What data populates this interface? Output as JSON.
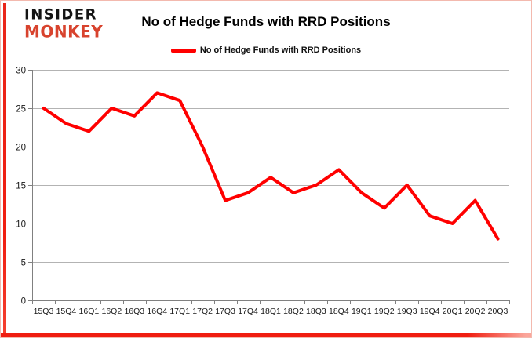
{
  "logo": {
    "line1": "INSIDER",
    "line2": "MONKEY",
    "brand_red": "#d8432e"
  },
  "title": "No of Hedge Funds with RRD Positions",
  "legend": {
    "label": "No of Hedge Funds with RRD Positions",
    "swatch_color": "#ff0000"
  },
  "frame": {
    "accent_color": "#f01d10",
    "border_color": "#f3b9ae"
  },
  "chart_data": {
    "type": "line",
    "title": "No of Hedge Funds with RRD Positions",
    "series": [
      {
        "name": "No of Hedge Funds with RRD Positions",
        "values": [
          25,
          23,
          22,
          25,
          24,
          27,
          26,
          20,
          13,
          14,
          16,
          14,
          15,
          17,
          14,
          12,
          15,
          11,
          10,
          13,
          8
        ]
      }
    ],
    "categories": [
      "15Q3",
      "15Q4",
      "16Q1",
      "16Q2",
      "16Q3",
      "16Q4",
      "17Q1",
      "17Q2",
      "17Q3",
      "17Q4",
      "18Q1",
      "18Q2",
      "18Q3",
      "18Q4",
      "19Q1",
      "19Q2",
      "19Q3",
      "19Q4",
      "20Q1",
      "20Q2",
      "20Q3"
    ],
    "xlabel": "",
    "ylabel": "",
    "ylim": [
      0,
      30
    ],
    "yticks": [
      0,
      5,
      10,
      15,
      20,
      25,
      30
    ],
    "line_color": "#ff0000",
    "gridline_color": "#b3b3b3",
    "axis_color": "#808080",
    "tick_label_color": "#1a1a1a",
    "grid": true,
    "legend_position": "top"
  }
}
